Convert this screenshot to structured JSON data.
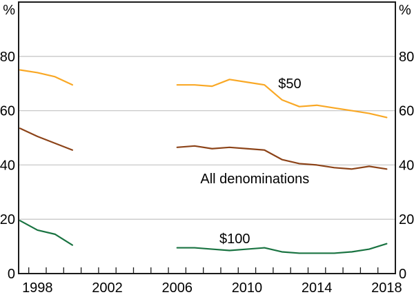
{
  "chart_data": {
    "type": "line",
    "title": "",
    "unit_left": "%",
    "unit_right": "%",
    "ylim": [
      0,
      100
    ],
    "yticks": [
      0,
      20,
      40,
      60,
      80
    ],
    "grid_values": [
      20,
      40,
      60,
      80
    ],
    "x_start": 1997.42,
    "x_end": 2019,
    "tick_year_first": 1998,
    "tick_year_last": 2018,
    "x_labels": [
      {
        "year": 1998,
        "label": "1998"
      },
      {
        "year": 2002,
        "label": "2002"
      },
      {
        "year": 2006,
        "label": "2006"
      },
      {
        "year": 2010,
        "label": "2010"
      },
      {
        "year": 2014,
        "label": "2014"
      },
      {
        "year": 2018,
        "label": "2018"
      }
    ],
    "axis_color": "#1a1a1a",
    "grid_color": "#c8c8c8",
    "background": "#ffffff",
    "series": [
      {
        "name": "$50",
        "color": "#F9A825",
        "label": {
          "text": "$50",
          "x": 2012.95,
          "y": 70
        },
        "segments": [
          {
            "years": [
              1997,
              1998,
              1999,
              2000
            ],
            "values": [
              75,
              74,
              72.5,
              69.5
            ]
          },
          {
            "years": [
              2006,
              2007,
              2008,
              2009,
              2010,
              2011,
              2012,
              2013,
              2014,
              2015,
              2016,
              2017,
              2018
            ],
            "values": [
              69.5,
              69.5,
              69,
              71.5,
              70.5,
              69.5,
              64,
              61.5,
              62,
              61,
              60,
              59,
              57.5
            ]
          }
        ]
      },
      {
        "name": "All denominations",
        "color": "#8C4318",
        "label": {
          "text": "All denominations",
          "x": 2010.95,
          "y": 35
        },
        "segments": [
          {
            "years": [
              1997,
              1998,
              1999,
              2000
            ],
            "values": [
              53.5,
              50.5,
              48,
              45.5
            ]
          },
          {
            "years": [
              2006,
              2007,
              2008,
              2009,
              2010,
              2011,
              2012,
              2013,
              2014,
              2015,
              2016,
              2017,
              2018
            ],
            "values": [
              46.5,
              47,
              46,
              46.5,
              46,
              45.5,
              42,
              40.5,
              40,
              39,
              38.5,
              39.5,
              38.5
            ]
          }
        ]
      },
      {
        "name": "$100",
        "color": "#197341",
        "label": {
          "text": "$100",
          "x": 2009.8,
          "y": 13
        },
        "segments": [
          {
            "years": [
              1997,
              1998,
              1999,
              2000
            ],
            "values": [
              19.5,
              16,
              14.5,
              10.5
            ]
          },
          {
            "years": [
              2006,
              2007,
              2008,
              2009,
              2010,
              2011,
              2012,
              2013,
              2014,
              2015,
              2016,
              2017,
              2018
            ],
            "values": [
              9.5,
              9.5,
              9,
              8.5,
              9,
              9.5,
              8,
              7.5,
              7.5,
              7.5,
              8,
              9,
              11
            ]
          }
        ]
      }
    ]
  }
}
